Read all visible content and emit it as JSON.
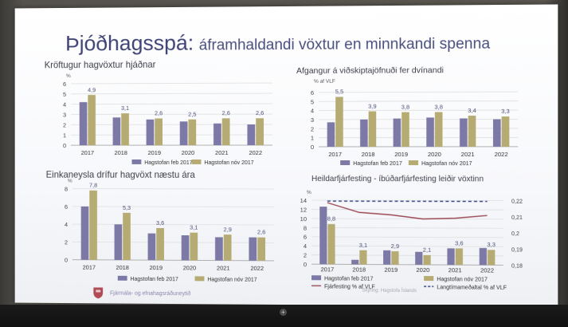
{
  "slide": {
    "title_lead": "Þjóðhagsspá:",
    "title_rest": "áframhaldandi vöxtur en minnkandi spenna",
    "footer_text": "Fjármála- og efnahagsráðuneytið",
    "credit": "Skýring: Hagstofa Íslands"
  },
  "colors": {
    "series_feb": "#7d79a6",
    "series_nov": "#b5ab73",
    "label_color": "#4c4f7a",
    "line_investment": "#9b4b57",
    "line_average": "#3a4a8a"
  },
  "icons": {
    "footer_logo": "coat-of-arms-icon",
    "power": "plus-icon"
  },
  "chart_data": [
    {
      "type": "bar",
      "title": "Kröftugur hagvöxtur hjáðnar",
      "ylabel": "%",
      "ylim": [
        0,
        6
      ],
      "yticks": [
        "0",
        "1",
        "2",
        "3",
        "4",
        "5",
        "6"
      ],
      "categories": [
        "2017",
        "2018",
        "2019",
        "2020",
        "2021",
        "2022"
      ],
      "grid": true,
      "legend_position": "bottom-right",
      "series": [
        {
          "name": "Hagstofan feb 2017",
          "values": [
            4.2,
            2.7,
            2.5,
            2.3,
            2.1,
            2.0
          ],
          "labels": [
            "",
            "",
            "",
            "",
            "",
            ""
          ]
        },
        {
          "name": "Hagstofan nóv 2017",
          "values": [
            4.9,
            3.1,
            2.6,
            2.5,
            2.6,
            2.6
          ],
          "labels": [
            "4,9",
            "3,1",
            "2,6",
            "2,5",
            "2,6",
            "2,6"
          ]
        }
      ]
    },
    {
      "type": "bar",
      "title": "Afgangur á viðskiptajöfnuði fer dvínandi",
      "ylabel": "% af VLF",
      "ylim": [
        0,
        6
      ],
      "yticks": [
        "0",
        "1",
        "2",
        "3",
        "4",
        "5",
        "6"
      ],
      "categories": [
        "2017",
        "2018",
        "2019",
        "2020",
        "2021",
        "2022"
      ],
      "grid": true,
      "legend_position": "bottom-center",
      "series": [
        {
          "name": "Hagstofan feb 2017",
          "values": [
            2.7,
            3.0,
            3.1,
            3.2,
            3.1,
            3.0
          ],
          "labels": [
            "",
            "",
            "",
            "",
            "",
            ""
          ]
        },
        {
          "name": "Hagstofan nóv 2017",
          "values": [
            5.5,
            3.9,
            3.8,
            3.8,
            3.4,
            3.3
          ],
          "labels": [
            "5,5",
            "3,9",
            "3,8",
            "3,8",
            "3,4",
            "3,3"
          ]
        }
      ]
    },
    {
      "type": "bar",
      "title": "Einkaneysla drífur hagvöxt næstu ára",
      "ylabel": "%",
      "ylim": [
        0,
        8
      ],
      "yticks": [
        "0",
        "2",
        "4",
        "6",
        "8"
      ],
      "categories": [
        "2017",
        "2018",
        "2019",
        "2020",
        "2021",
        "2022"
      ],
      "grid": true,
      "legend_position": "bottom-center",
      "series": [
        {
          "name": "Hagstofan feb 2017",
          "values": [
            6.0,
            4.0,
            3.0,
            2.8,
            2.6,
            2.6
          ],
          "labels": [
            "",
            "",
            "",
            "",
            "",
            ""
          ]
        },
        {
          "name": "Hagstofan nóv 2017",
          "values": [
            7.8,
            5.3,
            3.6,
            3.1,
            2.9,
            2.6
          ],
          "labels": [
            "7,8",
            "5,3",
            "3,6",
            "3,1",
            "2,9",
            "2,6"
          ]
        }
      ]
    },
    {
      "type": "bar",
      "title": "Heildarfjárfesting - íbúðarfjárfesting leiðir vöxtinn",
      "ylabel": "%",
      "ylim": [
        0,
        14
      ],
      "yticks": [
        "0",
        "2",
        "4",
        "6",
        "8",
        "10",
        "12",
        "14"
      ],
      "y2lim": [
        0.18,
        0.22
      ],
      "y2ticks": [
        "0,18",
        "0,19",
        "0,2",
        "0,21",
        "0,22"
      ],
      "categories": [
        "2017",
        "2018",
        "2019",
        "2020",
        "2021",
        "2022"
      ],
      "grid": true,
      "legend_position": "bottom",
      "series": [
        {
          "name": "Hagstofan feb 2017",
          "values": [
            12.6,
            1.0,
            3.1,
            2.8,
            3.6,
            3.7
          ],
          "labels": [
            "",
            "",
            "",
            "",
            "",
            ""
          ]
        },
        {
          "name": "Hagstofan nóv 2017",
          "values": [
            8.8,
            3.1,
            2.9,
            2.1,
            3.6,
            3.3
          ],
          "labels": [
            "8,8",
            "3,1",
            "2,9",
            "2,1",
            "3,6",
            "3,3"
          ]
        }
      ],
      "lines": [
        {
          "name": "Fjárfesting % af VLF",
          "axis": "right",
          "values": [
            0.2185,
            0.2125,
            0.211,
            0.2085,
            0.209,
            0.2108
          ]
        },
        {
          "name": "Langtímameðaltal % af VLF",
          "axis": "right",
          "dashed": true,
          "values": [
            0.2195,
            0.2195,
            0.2195,
            0.2195,
            0.2195,
            0.2195
          ]
        }
      ]
    }
  ]
}
